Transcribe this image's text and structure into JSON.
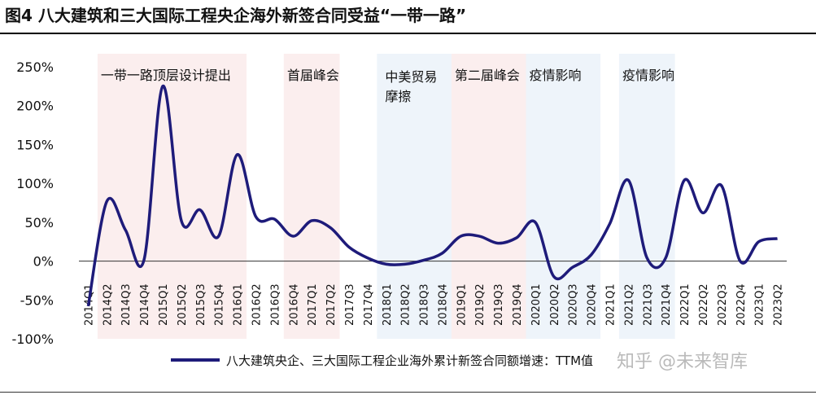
{
  "title": "图4  八大建筑和三大国际工程央企海外新签合同受益“一带一路”",
  "watermark": "知乎 @未来智库",
  "chart_data": {
    "type": "line",
    "legend_position": "bottom",
    "grid": false,
    "ylim": [
      -100,
      250
    ],
    "yticks": [
      "250%",
      "200%",
      "150%",
      "100%",
      "50%",
      "0%",
      "-50%",
      "-100%"
    ],
    "categories": [
      "2014Q1",
      "2014Q2",
      "2014Q3",
      "2014Q4",
      "2015Q1",
      "2015Q2",
      "2015Q3",
      "2015Q4",
      "2016Q1",
      "2016Q2",
      "2016Q3",
      "2016Q4",
      "2017Q1",
      "2017Q2",
      "2017Q3",
      "2017Q4",
      "2018Q1",
      "2018Q2",
      "2018Q3",
      "2018Q4",
      "2019Q1",
      "2019Q2",
      "2019Q3",
      "2019Q4",
      "2020Q1",
      "2020Q2",
      "2020Q3",
      "2020Q4",
      "2021Q1",
      "2021Q2",
      "2021Q3",
      "2021Q4",
      "2022Q1",
      "2022Q2",
      "2022Q3",
      "2022Q4",
      "2023Q1",
      "2023Q2"
    ],
    "series": [
      {
        "name": "八大建筑央企、三大国际工程企业海外累计新签合同额增速：TTM值",
        "color": "#1e1b7a",
        "values": [
          -58,
          77,
          40,
          2,
          225,
          52,
          66,
          32,
          137,
          57,
          54,
          32,
          52,
          43,
          18,
          4,
          -4,
          -4,
          1,
          10,
          32,
          32,
          23,
          30,
          50,
          -20,
          -8,
          8,
          48,
          104,
          4,
          4,
          104,
          62,
          97,
          0,
          25,
          29
        ]
      }
    ],
    "shaded_regions": [
      {
        "start": 1,
        "end": 9,
        "label": "一带一路顶层设计提出",
        "color": "#fbeeee"
      },
      {
        "start": 11,
        "end": 14,
        "label": "首届峰会",
        "color": "#fbeeee"
      },
      {
        "start": 16,
        "end": 20,
        "label": "中美贸易摩擦",
        "color": "#eef4fa"
      },
      {
        "start": 20,
        "end": 24,
        "label": "第二届峰会",
        "color": "#fbeeee"
      },
      {
        "start": 24,
        "end": 28,
        "label": "疫情影响",
        "color": "#eef4fa"
      },
      {
        "start": 29,
        "end": 32,
        "label": "疫情影响",
        "color": "#eef4fa"
      }
    ]
  }
}
